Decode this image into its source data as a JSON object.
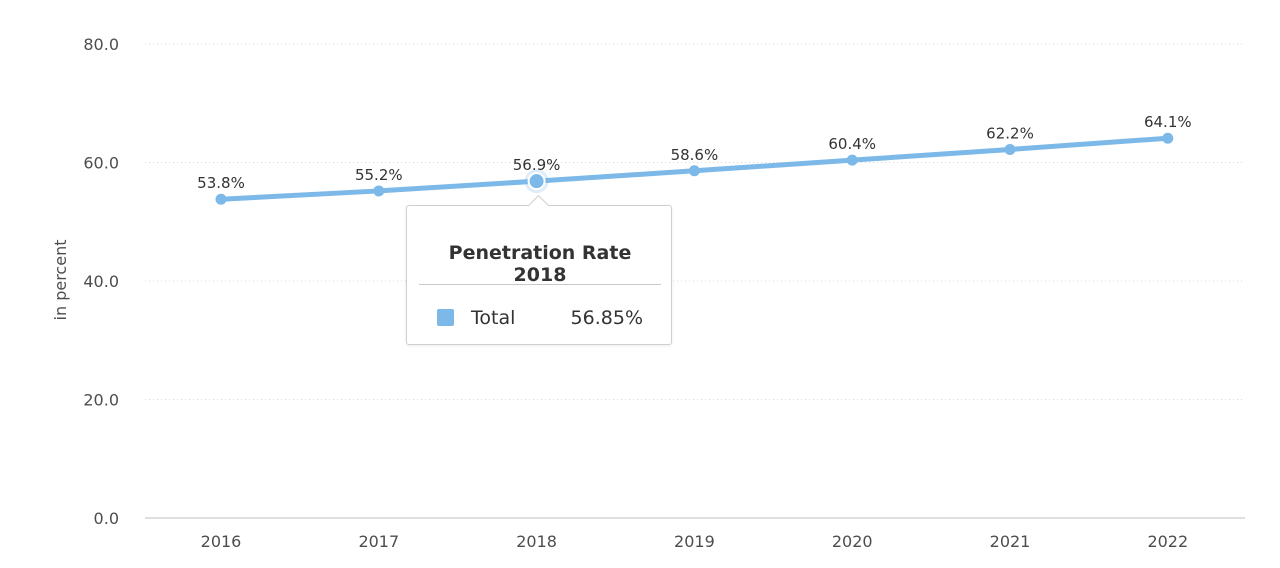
{
  "colors": {
    "series": "#7cb9e8",
    "grid": "#d9d9d9",
    "axis": "#bfbfbf",
    "text": "#4d4d4d"
  },
  "chart_data": {
    "type": "line",
    "categories": [
      "2016",
      "2017",
      "2018",
      "2019",
      "2020",
      "2021",
      "2022"
    ],
    "series": [
      {
        "name": "Total",
        "values": [
          53.8,
          55.2,
          56.85,
          58.6,
          60.4,
          62.2,
          64.1
        ],
        "data_labels": [
          "53.8%",
          "55.2%",
          "56.9%",
          "58.6%",
          "60.4%",
          "62.2%",
          "64.1%"
        ]
      }
    ],
    "ylabel": "in percent",
    "ylim": [
      0,
      80
    ],
    "yticks": [
      "0.0",
      "20.0",
      "40.0",
      "60.0",
      "80.0"
    ],
    "grid": true,
    "highlighted_index": 2
  },
  "tooltip": {
    "title": "Penetration Rate 2018",
    "series_name": "Total",
    "value": "56.85%"
  }
}
